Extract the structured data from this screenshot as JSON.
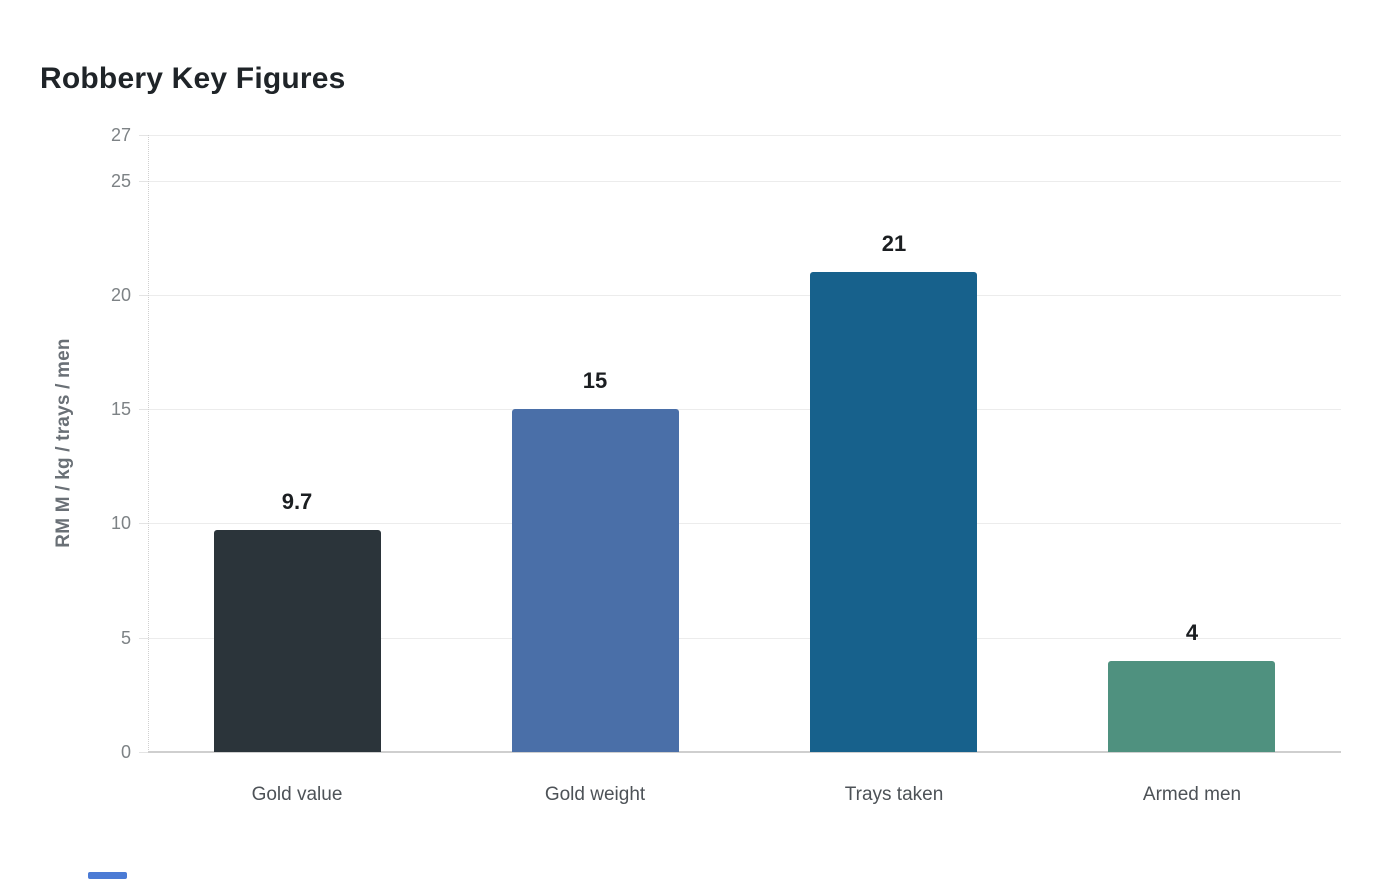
{
  "header": {
    "title": "Robbery Key Figures"
  },
  "chart_data": {
    "type": "bar",
    "title": "Robbery Key Figures",
    "categories": [
      "Gold value",
      "Gold weight",
      "Trays taken",
      "Armed men"
    ],
    "values": [
      9.7,
      15,
      21,
      4
    ],
    "value_labels": [
      "9.7",
      "15",
      "21",
      "4"
    ],
    "bar_colors": [
      "#2b343a",
      "#4a6fa8",
      "#17618c",
      "#4f917f"
    ],
    "xlabel": "",
    "ylabel": "RM M / kg / trays / men",
    "ylim": [
      0,
      27
    ],
    "yticks": [
      0,
      5,
      10,
      15,
      20,
      25,
      27
    ],
    "grid": true,
    "legend": false
  },
  "colors": {
    "title_text": "#1f2428",
    "grid_line": "#ececec",
    "baseline": "#cfcfcf",
    "axis_dotted_line": "#d0d0d0",
    "tick_label": "#7d8285",
    "axis_title": "#6a7076",
    "category_label": "#4d5257",
    "value_label": "#1b1e21",
    "scrollbar_thumb": "#4b7bd5"
  },
  "scrollbar": {
    "present": true
  }
}
